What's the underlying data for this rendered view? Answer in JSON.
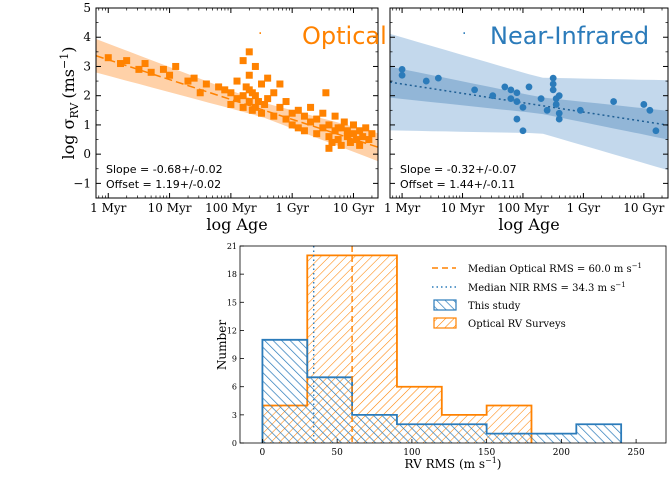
{
  "colors": {
    "optical": "#ff8200",
    "nir": "#2b7bba",
    "optical_band": "#ffc999",
    "nir_band_outer": "#bcd4ea",
    "nir_band_inner": "#89b0d4",
    "hatch_blue": "#2b7bba",
    "hatch_orange": "#ff8200"
  },
  "chart_data": [
    {
      "type": "scatter",
      "panel": "optical",
      "legend_label": "Optical",
      "legend_marker": "·",
      "xlabel": "log Age",
      "ylabel": "log σ",
      "ylabel_sub": "RV",
      "ylabel_unit": "(ms",
      "ylabel_unit_sup": "−1",
      "ylabel_unit_close": ")",
      "xlim": [
        5.8,
        10.4
      ],
      "ylim": [
        -1.5,
        5
      ],
      "x_ticks": [
        {
          "v": 6,
          "label": "1 Myr"
        },
        {
          "v": 7,
          "label": "10 Myr"
        },
        {
          "v": 8,
          "label": "100 Myr"
        },
        {
          "v": 9,
          "label": "1 Gyr"
        },
        {
          "v": 10,
          "label": "10 Gyr"
        }
      ],
      "y_ticks": [
        {
          "v": -1,
          "label": "−1"
        },
        {
          "v": 0,
          "label": "0"
        },
        {
          "v": 1,
          "label": "1"
        },
        {
          "v": 2,
          "label": "2"
        },
        {
          "v": 3,
          "label": "3"
        },
        {
          "v": 4,
          "label": "4"
        },
        {
          "v": 5,
          "label": "5"
        }
      ],
      "fit": {
        "slope": -0.68,
        "offset": 1.19
      },
      "slope_text": "Slope = -0.68+/-0.02",
      "offset_text": "Offset = 1.19+/-0.02",
      "points": [
        [
          6.0,
          3.3
        ],
        [
          6.2,
          3.1
        ],
        [
          6.3,
          3.2
        ],
        [
          6.5,
          2.9
        ],
        [
          6.6,
          3.1
        ],
        [
          6.7,
          2.8
        ],
        [
          6.9,
          2.9
        ],
        [
          7.0,
          2.7
        ],
        [
          7.1,
          3.0
        ],
        [
          7.3,
          2.5
        ],
        [
          7.4,
          2.6
        ],
        [
          7.5,
          2.1
        ],
        [
          7.6,
          2.4
        ],
        [
          7.8,
          2.3
        ],
        [
          7.9,
          2.2
        ],
        [
          8.0,
          2.1
        ],
        [
          8.0,
          1.7
        ],
        [
          8.1,
          1.9
        ],
        [
          8.1,
          2.5
        ],
        [
          8.2,
          1.6
        ],
        [
          8.2,
          2.0
        ],
        [
          8.2,
          3.2
        ],
        [
          8.25,
          2.3
        ],
        [
          8.3,
          1.8
        ],
        [
          8.3,
          2.2
        ],
        [
          8.3,
          2.7
        ],
        [
          8.3,
          3.5
        ],
        [
          8.35,
          1.5
        ],
        [
          8.35,
          2.1
        ],
        [
          8.4,
          1.6
        ],
        [
          8.4,
          2.0
        ],
        [
          8.4,
          3.0
        ],
        [
          8.45,
          1.8
        ],
        [
          8.5,
          1.4
        ],
        [
          8.5,
          2.4
        ],
        [
          8.55,
          1.7
        ],
        [
          8.6,
          1.9
        ],
        [
          8.6,
          2.6
        ],
        [
          8.7,
          1.3
        ],
        [
          8.7,
          2.1
        ],
        [
          8.8,
          1.6
        ],
        [
          8.8,
          2.4
        ],
        [
          8.9,
          1.2
        ],
        [
          8.9,
          1.8
        ],
        [
          9.0,
          1.4
        ],
        [
          9.0,
          1.0
        ],
        [
          9.1,
          1.5
        ],
        [
          9.1,
          0.9
        ],
        [
          9.2,
          1.3
        ],
        [
          9.2,
          0.8
        ],
        [
          9.3,
          1.6
        ],
        [
          9.3,
          1.1
        ],
        [
          9.4,
          0.7
        ],
        [
          9.4,
          1.2
        ],
        [
          9.5,
          0.9
        ],
        [
          9.5,
          1.4
        ],
        [
          9.55,
          2.1
        ],
        [
          9.6,
          0.6
        ],
        [
          9.6,
          1.0
        ],
        [
          9.65,
          0.4
        ],
        [
          9.7,
          0.8
        ],
        [
          9.7,
          1.3
        ],
        [
          9.75,
          0.5
        ],
        [
          9.8,
          0.9
        ],
        [
          9.8,
          0.3
        ],
        [
          9.85,
          1.1
        ],
        [
          9.9,
          0.6
        ],
        [
          9.9,
          0.8
        ],
        [
          9.95,
          0.4
        ],
        [
          10.0,
          0.7
        ],
        [
          10.0,
          1.0
        ],
        [
          10.05,
          0.5
        ],
        [
          10.1,
          0.8
        ],
        [
          10.1,
          0.3
        ],
        [
          10.15,
          0.6
        ],
        [
          10.2,
          0.9
        ],
        [
          10.25,
          0.5
        ],
        [
          10.3,
          0.7
        ],
        [
          9.6,
          0.2
        ],
        [
          9.75,
          0.9
        ]
      ]
    },
    {
      "type": "scatter",
      "panel": "nir",
      "legend_label": "Near-Infrared",
      "legend_marker": "·",
      "xlabel": "log Age",
      "xlim": [
        5.8,
        10.4
      ],
      "ylim": [
        -1.5,
        5
      ],
      "x_ticks": [
        {
          "v": 6,
          "label": "1 Myr"
        },
        {
          "v": 7,
          "label": "10 Myr"
        },
        {
          "v": 8,
          "label": "100 Myr"
        },
        {
          "v": 9,
          "label": "1 Gyr"
        },
        {
          "v": 10,
          "label": "10 Gyr"
        }
      ],
      "fit": {
        "slope": -0.32,
        "offset": 1.44
      },
      "slope_text": "Slope = -0.32+/-0.07",
      "offset_text": "Offset = 1.44+/-0.11",
      "points": [
        [
          6.0,
          2.9
        ],
        [
          6.0,
          2.7
        ],
        [
          6.4,
          2.5
        ],
        [
          6.6,
          2.6
        ],
        [
          7.2,
          2.2
        ],
        [
          7.5,
          2.0
        ],
        [
          7.7,
          2.3
        ],
        [
          7.8,
          2.2
        ],
        [
          7.8,
          1.9
        ],
        [
          7.9,
          1.2
        ],
        [
          7.9,
          1.8
        ],
        [
          7.9,
          2.1
        ],
        [
          8.0,
          0.8
        ],
        [
          8.0,
          1.6
        ],
        [
          8.1,
          2.3
        ],
        [
          8.3,
          1.9
        ],
        [
          8.4,
          1.5
        ],
        [
          8.5,
          2.6
        ],
        [
          8.5,
          2.4
        ],
        [
          8.5,
          2.2
        ],
        [
          8.55,
          1.9
        ],
        [
          8.55,
          1.7
        ],
        [
          8.6,
          1.4
        ],
        [
          8.6,
          1.2
        ],
        [
          8.6,
          2.0
        ],
        [
          8.95,
          1.5
        ],
        [
          9.5,
          1.8
        ],
        [
          10.0,
          1.7
        ],
        [
          10.1,
          1.5
        ],
        [
          10.2,
          0.8
        ]
      ]
    },
    {
      "type": "bar",
      "panel": "histogram",
      "xlabel": "RV RMS (m s",
      "xlabel_sup": "−1",
      "xlabel_close": ")",
      "ylabel": "Number",
      "xlim": [
        -15,
        270
      ],
      "ylim": [
        0,
        21
      ],
      "x_ticks": [
        0,
        50,
        100,
        150,
        200,
        250
      ],
      "y_ticks": [
        0,
        3,
        6,
        9,
        12,
        15,
        18,
        21
      ],
      "median_optical": 60.0,
      "median_nir": 34.3,
      "legend": {
        "median_optical": "Median Optical RMS = 60.0 m s",
        "median_nir": "Median NIR RMS = 34.3 m s",
        "unit_sup": "−1",
        "this_study": "This study",
        "optical_surveys": "Optical RV Surveys"
      },
      "series": [
        {
          "name": "This study",
          "bins": [
            [
              0,
              30,
              11
            ],
            [
              30,
              60,
              7
            ],
            [
              60,
              90,
              3
            ],
            [
              90,
              120,
              2
            ],
            [
              120,
              150,
              2
            ],
            [
              150,
              180,
              1
            ],
            [
              180,
              210,
              1
            ],
            [
              210,
              240,
              2
            ]
          ]
        },
        {
          "name": "Optical RV Surveys",
          "bins": [
            [
              0,
              30,
              4
            ],
            [
              30,
              60,
              20
            ],
            [
              60,
              90,
              20
            ],
            [
              90,
              120,
              6
            ],
            [
              120,
              150,
              3
            ],
            [
              150,
              180,
              4
            ]
          ]
        }
      ]
    }
  ]
}
